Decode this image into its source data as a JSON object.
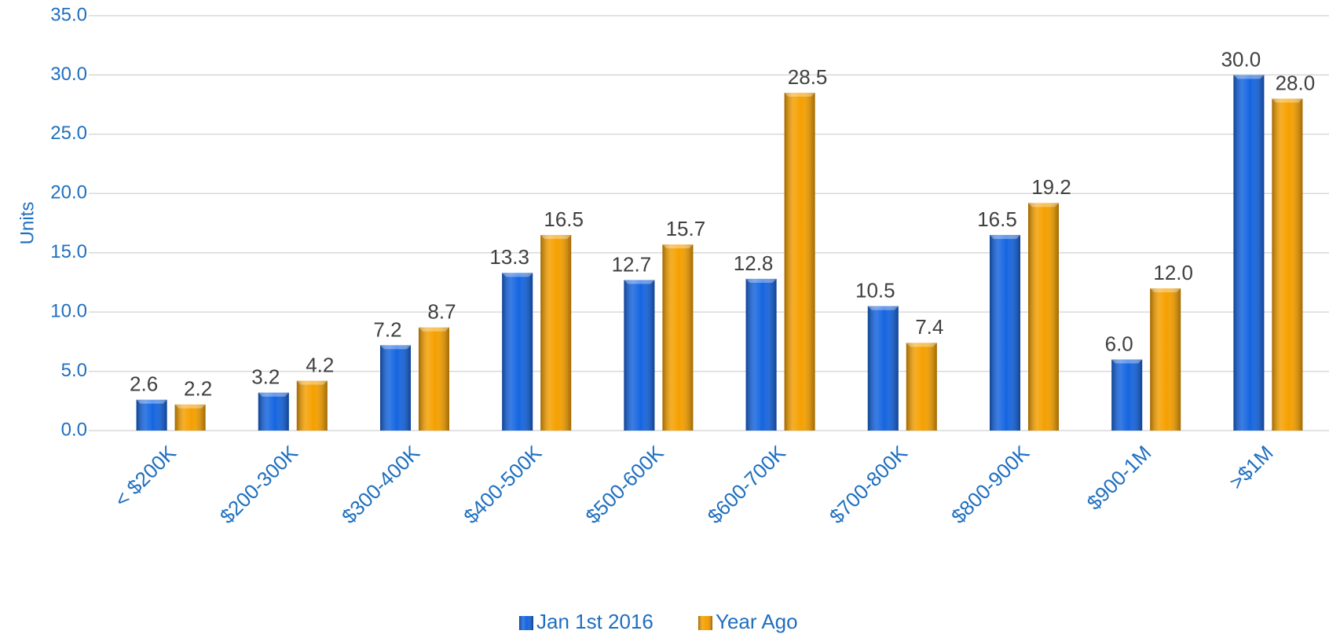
{
  "chart_data": {
    "type": "bar",
    "y_label": "Units",
    "categories": [
      "< $200K",
      "$200-300K",
      "$300-400K",
      "$400-500K",
      "$500-600K",
      "$600-700K",
      "$700-800K",
      "$800-900K",
      "$900-1M",
      ">$1M"
    ],
    "series": [
      {
        "name": "Jan 1st 2016",
        "color": "#1565e0",
        "values": [
          2.6,
          3.2,
          7.2,
          13.3,
          12.7,
          12.8,
          10.5,
          16.5,
          6,
          30
        ],
        "value_labels": [
          "2.6",
          "3.2",
          "7.2",
          "13.3",
          "12.7",
          "12.8",
          "10.5",
          "16.5",
          "6.0",
          "30.0"
        ]
      },
      {
        "name": "Year Ago",
        "color": "#f5a000",
        "values": [
          2.2,
          4.2,
          8.7,
          16.5,
          15.7,
          28.5,
          7.4,
          19.2,
          12,
          28
        ],
        "value_labels": [
          "2.2",
          "4.2",
          "8.7",
          "16.5",
          "15.7",
          "28.5",
          "7.4",
          "19.2",
          "12.0",
          "28.0"
        ]
      }
    ],
    "ylim": [
      0,
      35
    ],
    "yticks": [
      {
        "value": 0,
        "label": "0.0"
      },
      {
        "value": 5,
        "label": "5.0"
      },
      {
        "value": 10,
        "label": "10.0"
      },
      {
        "value": 15,
        "label": "15.0"
      },
      {
        "value": 20,
        "label": "20.0"
      },
      {
        "value": 25,
        "label": "25.0"
      },
      {
        "value": 30,
        "label": "30.0"
      },
      {
        "value": 35,
        "label": "35.0"
      }
    ],
    "grid": true,
    "legend": "bottom"
  }
}
